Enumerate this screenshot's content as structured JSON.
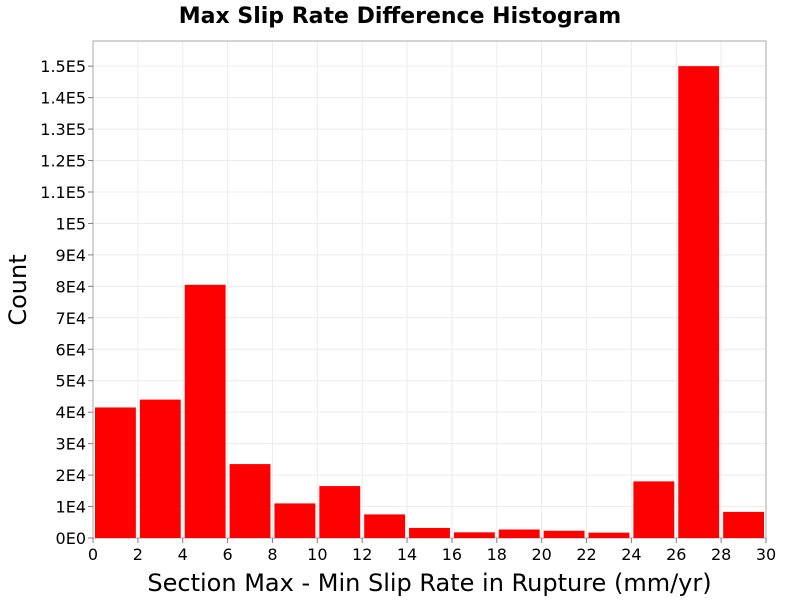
{
  "chart_data": {
    "type": "bar",
    "title": "Max Slip Rate Difference Histogram",
    "xlabel": "Section Max - Min Slip Rate in Rupture (mm/yr)",
    "ylabel": "Count",
    "xlim": [
      0,
      30
    ],
    "ylim": [
      0,
      158000
    ],
    "grid": true,
    "bar_color": "#ff0000",
    "bin_width": 2,
    "bins": [
      {
        "x_start": 0,
        "x_end": 2,
        "value": 41500
      },
      {
        "x_start": 2,
        "x_end": 4,
        "value": 44000
      },
      {
        "x_start": 4,
        "x_end": 6,
        "value": 80500
      },
      {
        "x_start": 6,
        "x_end": 8,
        "value": 23500
      },
      {
        "x_start": 8,
        "x_end": 10,
        "value": 11000
      },
      {
        "x_start": 10,
        "x_end": 12,
        "value": 16500
      },
      {
        "x_start": 12,
        "x_end": 14,
        "value": 7500
      },
      {
        "x_start": 14,
        "x_end": 16,
        "value": 3200
      },
      {
        "x_start": 16,
        "x_end": 18,
        "value": 1800
      },
      {
        "x_start": 18,
        "x_end": 20,
        "value": 2700
      },
      {
        "x_start": 20,
        "x_end": 22,
        "value": 2300
      },
      {
        "x_start": 22,
        "x_end": 24,
        "value": 1700
      },
      {
        "x_start": 24,
        "x_end": 26,
        "value": 18000
      },
      {
        "x_start": 26,
        "x_end": 28,
        "value": 150000
      },
      {
        "x_start": 28,
        "x_end": 30,
        "value": 8300
      }
    ],
    "x_ticks": [
      {
        "value": 0,
        "label": "0"
      },
      {
        "value": 2,
        "label": "2"
      },
      {
        "value": 4,
        "label": "4"
      },
      {
        "value": 6,
        "label": "6"
      },
      {
        "value": 8,
        "label": "8"
      },
      {
        "value": 10,
        "label": "10"
      },
      {
        "value": 12,
        "label": "12"
      },
      {
        "value": 14,
        "label": "14"
      },
      {
        "value": 16,
        "label": "16"
      },
      {
        "value": 18,
        "label": "18"
      },
      {
        "value": 20,
        "label": "20"
      },
      {
        "value": 22,
        "label": "22"
      },
      {
        "value": 24,
        "label": "24"
      },
      {
        "value": 26,
        "label": "26"
      },
      {
        "value": 28,
        "label": "28"
      },
      {
        "value": 30,
        "label": "30"
      }
    ],
    "y_ticks": [
      {
        "value": 0,
        "label": "0E0"
      },
      {
        "value": 10000,
        "label": "1E4"
      },
      {
        "value": 20000,
        "label": "2E4"
      },
      {
        "value": 30000,
        "label": "3E4"
      },
      {
        "value": 40000,
        "label": "4E4"
      },
      {
        "value": 50000,
        "label": "5E4"
      },
      {
        "value": 60000,
        "label": "6E4"
      },
      {
        "value": 70000,
        "label": "7E4"
      },
      {
        "value": 80000,
        "label": "8E4"
      },
      {
        "value": 90000,
        "label": "9E4"
      },
      {
        "value": 100000,
        "label": "1E5"
      },
      {
        "value": 110000,
        "label": "1.1E5"
      },
      {
        "value": 120000,
        "label": "1.2E5"
      },
      {
        "value": 130000,
        "label": "1.3E5"
      },
      {
        "value": 140000,
        "label": "1.4E5"
      },
      {
        "value": 150000,
        "label": "1.5E5"
      }
    ]
  }
}
